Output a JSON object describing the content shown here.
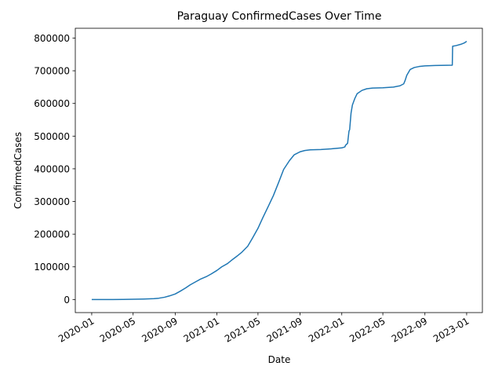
{
  "chart_data": {
    "type": "line",
    "title": "Paraguay  ConfirmedCases Over Time",
    "xlabel": "Date",
    "ylabel": "ConfirmedCases",
    "xlim": [
      "2019-11-14",
      "2023-02-16"
    ],
    "ylim": [
      -40000,
      830000
    ],
    "grid": false,
    "x_ticks": [
      "2020-01",
      "2020-05",
      "2020-09",
      "2021-01",
      "2021-05",
      "2021-09",
      "2022-01",
      "2022-05",
      "2022-09",
      "2023-01"
    ],
    "y_ticks": [
      0,
      100000,
      200000,
      300000,
      400000,
      500000,
      600000,
      700000,
      800000
    ],
    "y_tick_labels": [
      "0",
      "100000",
      "200000",
      "300000",
      "400000",
      "500000",
      "600000",
      "700000",
      "800000"
    ],
    "series": [
      {
        "color": "#1f77b4",
        "points": [
          [
            "2020-01-01",
            0
          ],
          [
            "2020-03-01",
            0
          ],
          [
            "2020-04-01",
            200
          ],
          [
            "2020-05-01",
            800
          ],
          [
            "2020-06-01",
            1500
          ],
          [
            "2020-07-01",
            2800
          ],
          [
            "2020-07-15",
            4000
          ],
          [
            "2020-08-01",
            7000
          ],
          [
            "2020-08-15",
            11000
          ],
          [
            "2020-09-01",
            17000
          ],
          [
            "2020-09-15",
            25000
          ],
          [
            "2020-10-01",
            35000
          ],
          [
            "2020-10-15",
            45000
          ],
          [
            "2020-11-01",
            55000
          ],
          [
            "2020-11-15",
            63000
          ],
          [
            "2020-12-01",
            70000
          ],
          [
            "2020-12-15",
            78000
          ],
          [
            "2021-01-01",
            89000
          ],
          [
            "2021-01-15",
            100000
          ],
          [
            "2021-02-01",
            110000
          ],
          [
            "2021-02-15",
            122000
          ],
          [
            "2021-03-01",
            133000
          ],
          [
            "2021-03-15",
            145000
          ],
          [
            "2021-04-01",
            163000
          ],
          [
            "2021-04-15",
            188000
          ],
          [
            "2021-05-01",
            218000
          ],
          [
            "2021-05-15",
            250000
          ],
          [
            "2021-06-01",
            287000
          ],
          [
            "2021-06-15",
            318000
          ],
          [
            "2021-07-01",
            360000
          ],
          [
            "2021-07-15",
            398000
          ],
          [
            "2021-08-01",
            425000
          ],
          [
            "2021-08-15",
            443000
          ],
          [
            "2021-09-01",
            452000
          ],
          [
            "2021-09-15",
            456000
          ],
          [
            "2021-10-01",
            458000
          ],
          [
            "2021-11-01",
            459000
          ],
          [
            "2021-12-01",
            461000
          ],
          [
            "2022-01-01",
            464000
          ],
          [
            "2022-01-10",
            467000
          ],
          [
            "2022-01-12",
            472000
          ],
          [
            "2022-01-18",
            478000
          ],
          [
            "2022-01-22",
            515000
          ],
          [
            "2022-01-24",
            520000
          ],
          [
            "2022-01-28",
            570000
          ],
          [
            "2022-02-01",
            595000
          ],
          [
            "2022-02-08",
            615000
          ],
          [
            "2022-02-15",
            630000
          ],
          [
            "2022-03-01",
            640000
          ],
          [
            "2022-03-15",
            645000
          ],
          [
            "2022-04-01",
            647000
          ],
          [
            "2022-05-01",
            648000
          ],
          [
            "2022-06-01",
            650000
          ],
          [
            "2022-06-20",
            654000
          ],
          [
            "2022-07-01",
            660000
          ],
          [
            "2022-07-05",
            670000
          ],
          [
            "2022-07-10",
            686000
          ],
          [
            "2022-07-15",
            695000
          ],
          [
            "2022-07-20",
            704000
          ],
          [
            "2022-08-01",
            710000
          ],
          [
            "2022-08-15",
            713000
          ],
          [
            "2022-09-01",
            715000
          ],
          [
            "2022-10-01",
            716000
          ],
          [
            "2022-11-20",
            717000
          ],
          [
            "2022-11-21",
            775000
          ],
          [
            "2022-12-01",
            777000
          ],
          [
            "2022-12-15",
            781000
          ],
          [
            "2022-12-25",
            785000
          ],
          [
            "2023-01-01",
            790000
          ]
        ]
      }
    ]
  }
}
